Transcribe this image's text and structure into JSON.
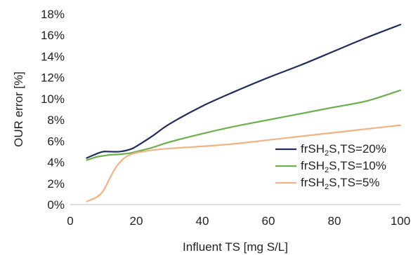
{
  "chart_data": {
    "type": "line",
    "xlabel": "Influent TS [mg S/L]",
    "ylabel": "OUR error [%]",
    "xlim": [
      0,
      100
    ],
    "ylim": [
      0,
      18
    ],
    "x_ticks": [
      "0",
      "20",
      "40",
      "60",
      "80",
      "100"
    ],
    "x_tick_values": [
      0,
      20,
      40,
      60,
      80,
      100
    ],
    "y_ticks": [
      "0%",
      "2%",
      "4%",
      "6%",
      "8%",
      "10%",
      "12%",
      "14%",
      "16%",
      "18%"
    ],
    "y_tick_values": [
      0,
      2,
      4,
      6,
      8,
      10,
      12,
      14,
      16,
      18
    ],
    "grid": false,
    "legend_position": "bottom-right",
    "series": [
      {
        "name": "frSH2S,TS=20%",
        "label_parts": [
          "frSH",
          "2",
          "S,TS=20%"
        ],
        "color": "#1f2d5c",
        "x": [
          5,
          8,
          10,
          12,
          15,
          18,
          20,
          25,
          30,
          40,
          50,
          60,
          70,
          80,
          90,
          100
        ],
        "y": [
          4.4,
          4.8,
          5.0,
          5.0,
          5.0,
          5.2,
          5.5,
          6.5,
          7.6,
          9.3,
          10.7,
          12.0,
          13.2,
          14.5,
          15.8,
          17.0
        ]
      },
      {
        "name": "frSH2S,TS=10%",
        "label_parts": [
          "frSH",
          "2",
          "S,TS=10%"
        ],
        "color": "#6ab04c",
        "x": [
          5,
          8,
          10,
          12,
          15,
          18,
          20,
          25,
          30,
          40,
          50,
          60,
          70,
          80,
          90,
          100
        ],
        "y": [
          4.2,
          4.5,
          4.6,
          4.7,
          4.75,
          4.85,
          5.0,
          5.4,
          5.9,
          6.7,
          7.4,
          8.0,
          8.6,
          9.2,
          9.8,
          10.8
        ]
      },
      {
        "name": "frSH2S,TS=5%",
        "label_parts": [
          "frSH",
          "2",
          "S,TS=5%"
        ],
        "color": "#f4b183",
        "x": [
          5,
          8,
          10,
          12,
          14,
          16,
          18,
          20,
          22,
          25,
          30,
          40,
          50,
          60,
          70,
          80,
          90,
          100
        ],
        "y": [
          0.3,
          0.7,
          1.3,
          2.5,
          3.6,
          4.3,
          4.7,
          4.9,
          5.0,
          5.15,
          5.3,
          5.5,
          5.75,
          6.1,
          6.45,
          6.8,
          7.15,
          7.5
        ]
      }
    ]
  }
}
